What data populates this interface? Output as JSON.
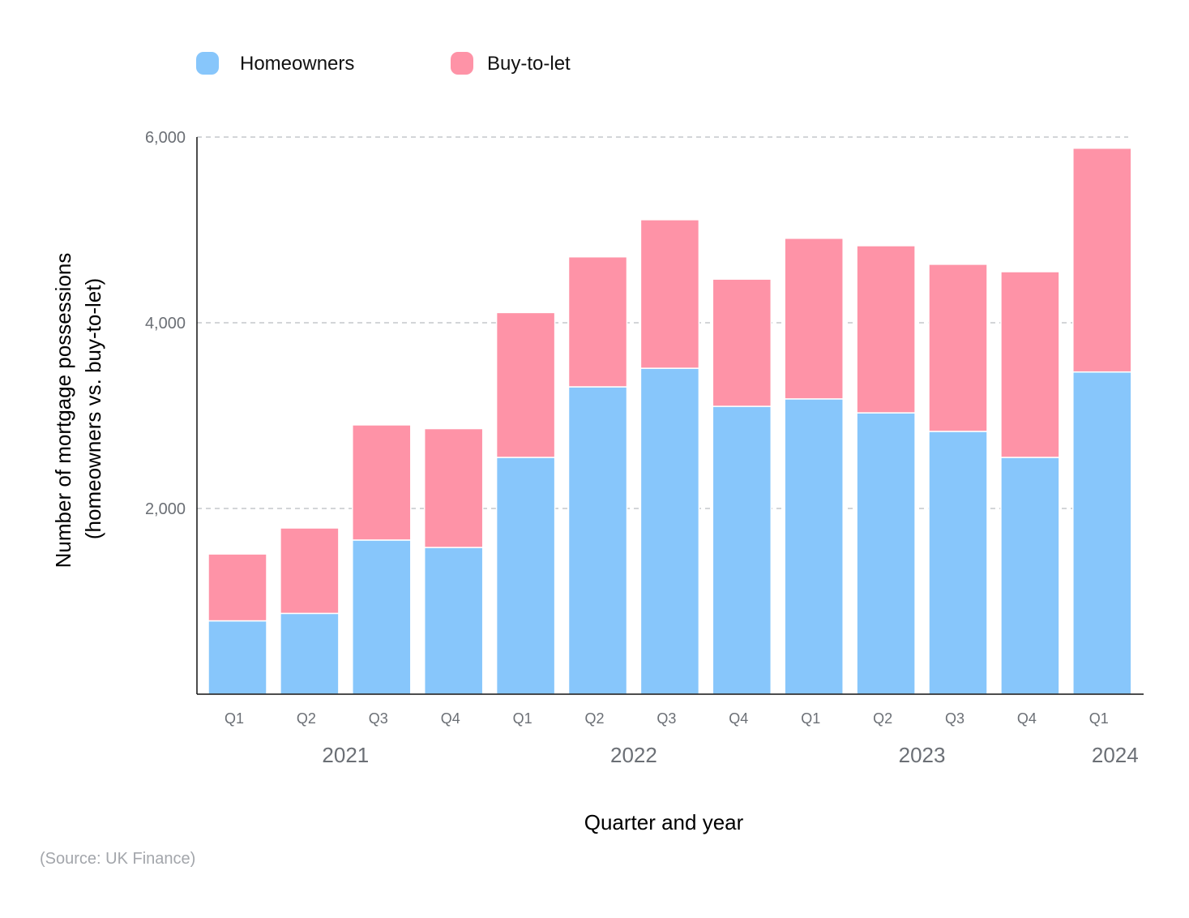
{
  "chart_data": {
    "type": "bar",
    "stacked": true,
    "categories": [
      "Q1",
      "Q2",
      "Q3",
      "Q4",
      "Q1",
      "Q2",
      "Q3",
      "Q4",
      "Q1",
      "Q2",
      "Q3",
      "Q4",
      "Q1"
    ],
    "years": [
      {
        "label": "2021",
        "first": 0,
        "last": 3
      },
      {
        "label": "2022",
        "first": 4,
        "last": 7
      },
      {
        "label": "2023",
        "first": 8,
        "last": 11
      },
      {
        "label": "2024",
        "first": 12,
        "last": 12
      }
    ],
    "series": [
      {
        "name": "Homeowners",
        "color": "#87c6fb",
        "values": [
          790,
          870,
          1660,
          1580,
          2550,
          3310,
          3510,
          3100,
          3180,
          3030,
          2830,
          2550,
          3470
        ]
      },
      {
        "name": "Buy-to-let",
        "color": "#fe93a7",
        "values": [
          720,
          920,
          1240,
          1280,
          1560,
          1400,
          1600,
          1370,
          1730,
          1800,
          1800,
          2000,
          2410
        ]
      }
    ],
    "ylabel_line1": "Number of mortgage possessions",
    "ylabel_line2": "(homeowners vs. buy-to-let)",
    "xlabel": "Quarter and year",
    "ylim": [
      0,
      6000
    ],
    "yticks": [
      2000,
      4000,
      6000
    ],
    "ytick_labels": [
      "2,000",
      "4,000",
      "6,000"
    ],
    "grid": true,
    "legend_position": "top-left"
  },
  "source_note": "(Source: UK Finance)"
}
